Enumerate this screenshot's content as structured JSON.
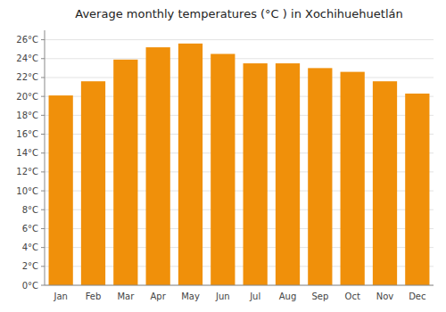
{
  "chart_data": {
    "type": "bar",
    "title": "Average monthly temperatures (°C ) in Xochihuehuetlán",
    "categories": [
      "Jan",
      "Feb",
      "Mar",
      "Apr",
      "May",
      "Jun",
      "Jul",
      "Aug",
      "Sep",
      "Oct",
      "Nov",
      "Dec"
    ],
    "values": [
      20.1,
      21.6,
      23.9,
      25.2,
      25.6,
      24.5,
      23.5,
      23.5,
      23.0,
      22.6,
      21.6,
      20.3
    ],
    "color": "#F0900A",
    "ylim": [
      0,
      27
    ],
    "yticks": [
      {
        "value": 0,
        "label": "0°C"
      },
      {
        "value": 2,
        "label": "2°C"
      },
      {
        "value": 4,
        "label": "4°C"
      },
      {
        "value": 6,
        "label": "6°C"
      },
      {
        "value": 8,
        "label": "8°C"
      },
      {
        "value": 10,
        "label": "10°C"
      },
      {
        "value": 12,
        "label": "12°C"
      },
      {
        "value": 14,
        "label": "14°C"
      },
      {
        "value": 16,
        "label": "16°C"
      },
      {
        "value": 18,
        "label": "18°C"
      },
      {
        "value": 20,
        "label": "20°C"
      },
      {
        "value": 22,
        "label": "22°C"
      },
      {
        "value": 24,
        "label": "24°C"
      },
      {
        "value": 26,
        "label": "26°C"
      }
    ],
    "grid": true
  }
}
